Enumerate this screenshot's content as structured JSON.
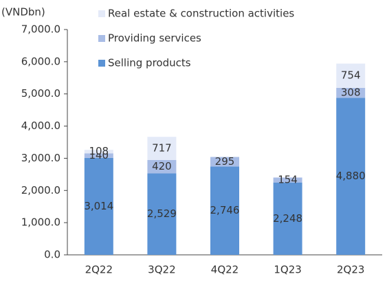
{
  "chart_data": {
    "type": "stacked_bar",
    "y_axis_label": "(VNDbn)",
    "categories": [
      "2Q22",
      "3Q22",
      "4Q22",
      "1Q23",
      "2Q23"
    ],
    "series": [
      {
        "name": "Selling products",
        "color": "#5b93d5",
        "values": [
          3014,
          2529,
          2746,
          2248,
          4880
        ],
        "value_labels": [
          "3,014",
          "2,529",
          "2,746",
          "2,248",
          "4,880"
        ]
      },
      {
        "name": "Providing services",
        "color": "#a9bde6",
        "values": [
          140,
          420,
          295,
          154,
          308
        ]
      },
      {
        "name": "Real estate & construction activities",
        "color": "#e4eaf8",
        "values": [
          108,
          717,
          null,
          null,
          754
        ]
      }
    ],
    "ylim": [
      0,
      7000
    ],
    "yticks": [
      {
        "value": 0,
        "label": "0.0"
      },
      {
        "value": 1000,
        "label": "1,000.0"
      },
      {
        "value": 2000,
        "label": "2,000.0"
      },
      {
        "value": 3000,
        "label": "3,000.0"
      },
      {
        "value": 4000,
        "label": "4,000.0"
      },
      {
        "value": 5000,
        "label": "5,000.0"
      },
      {
        "value": 6000,
        "label": "6,000.0"
      },
      {
        "value": 7000,
        "label": "7,000.0"
      }
    ],
    "grid": false
  }
}
